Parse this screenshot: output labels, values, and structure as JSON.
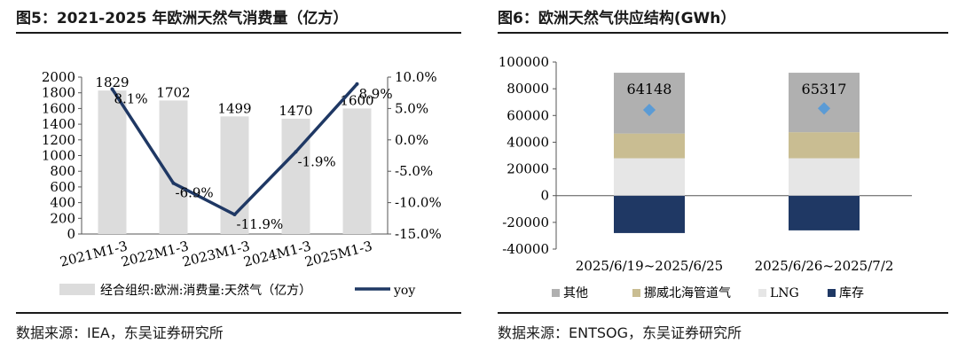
{
  "left": {
    "title": "图5：2021-2025 年欧洲天然气消费量（亿方）",
    "source": "数据来源：IEA，东吴证券研究所",
    "legend": {
      "bar": "经合组织:欧洲:消费量:天然气（亿方）",
      "line": "yoy"
    }
  },
  "right": {
    "title": "图6：欧洲天然气供应结构(GWh）",
    "source": "数据来源：ENTSOG，东吴证券研究所",
    "legend": [
      "其他",
      "挪威北海管道气",
      "LNG",
      "库存"
    ]
  },
  "chart_data": [
    {
      "type": "bar",
      "categories": [
        "2021M1-3",
        "2022M1-3",
        "2023M1-3",
        "2024M1-3",
        "2025M1-3"
      ],
      "series": [
        {
          "name": "经合组织:欧洲:消费量:天然气（亿方）",
          "type": "bar",
          "axis": "left",
          "values": [
            1829,
            1702,
            1499,
            1470,
            1600
          ],
          "labels": [
            "1829",
            "1702",
            "1499",
            "1470",
            "1600"
          ]
        },
        {
          "name": "yoy",
          "type": "line",
          "axis": "right",
          "values": [
            8.1,
            -6.9,
            -11.9,
            -1.9,
            8.9
          ],
          "labels": [
            "8.1%",
            "-6.9%",
            "-11.9%",
            "-1.9%",
            "8.9%"
          ]
        }
      ],
      "ylim": [
        0,
        2000
      ],
      "yticks": [
        "0",
        "200",
        "400",
        "600",
        "800",
        "1000",
        "1200",
        "1400",
        "1600",
        "1800",
        "2000"
      ],
      "y2lim": [
        -15,
        10
      ],
      "y2ticks": [
        "-15.0%",
        "-10.0%",
        "-5.0%",
        "0.0%",
        "5.0%",
        "10.0%"
      ],
      "legend_position": "bottom",
      "colors": {
        "bar": "#dcdcdc",
        "line": "#1f3864"
      }
    },
    {
      "type": "bar",
      "stacked": true,
      "categories": [
        "2025/6/19~2025/6/25",
        "2025/6/26~2025/7/2"
      ],
      "series": [
        {
          "name": "库存",
          "values": [
            -28000,
            -26000
          ],
          "color": "#1f3864"
        },
        {
          "name": "LNG",
          "values": [
            28000,
            28000
          ],
          "color": "#e6e6e6"
        },
        {
          "name": "挪威北海管道气",
          "values": [
            18500,
            19500
          ],
          "color": "#c9bd92"
        },
        {
          "name": "其他",
          "values": [
            45500,
            44500
          ],
          "color": "#b0b0b0"
        }
      ],
      "totals": {
        "values": [
          64148,
          65317
        ],
        "labels": [
          "64148",
          "65317"
        ],
        "marker": "diamond",
        "color": "#5b9bd5"
      },
      "ylim": [
        -40000,
        100000
      ],
      "yticks": [
        "-40000",
        "-20000",
        "0",
        "20000",
        "40000",
        "60000",
        "80000",
        "100000"
      ],
      "legend_position": "bottom"
    }
  ]
}
